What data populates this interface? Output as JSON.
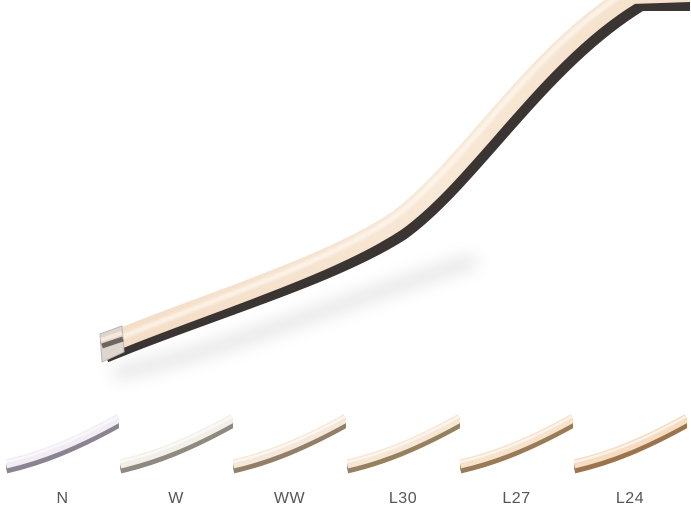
{
  "hero": {
    "glow_color": "#f6e6d2",
    "edge_color": "#3b3633"
  },
  "variants": [
    {
      "label": "N",
      "color": "#f2ecf4",
      "edge": "#8a8390"
    },
    {
      "label": "W",
      "color": "#f1efe8",
      "edge": "#8e8a80"
    },
    {
      "label": "WW",
      "color": "#f6e8d8",
      "edge": "#927f68"
    },
    {
      "label": "L30",
      "color": "#f7e6d3",
      "edge": "#95805f"
    },
    {
      "label": "L27",
      "color": "#f7e2cb",
      "edge": "#9a7b57"
    },
    {
      "label": "L24",
      "color": "#f6dcc0",
      "edge": "#9b744d"
    }
  ]
}
